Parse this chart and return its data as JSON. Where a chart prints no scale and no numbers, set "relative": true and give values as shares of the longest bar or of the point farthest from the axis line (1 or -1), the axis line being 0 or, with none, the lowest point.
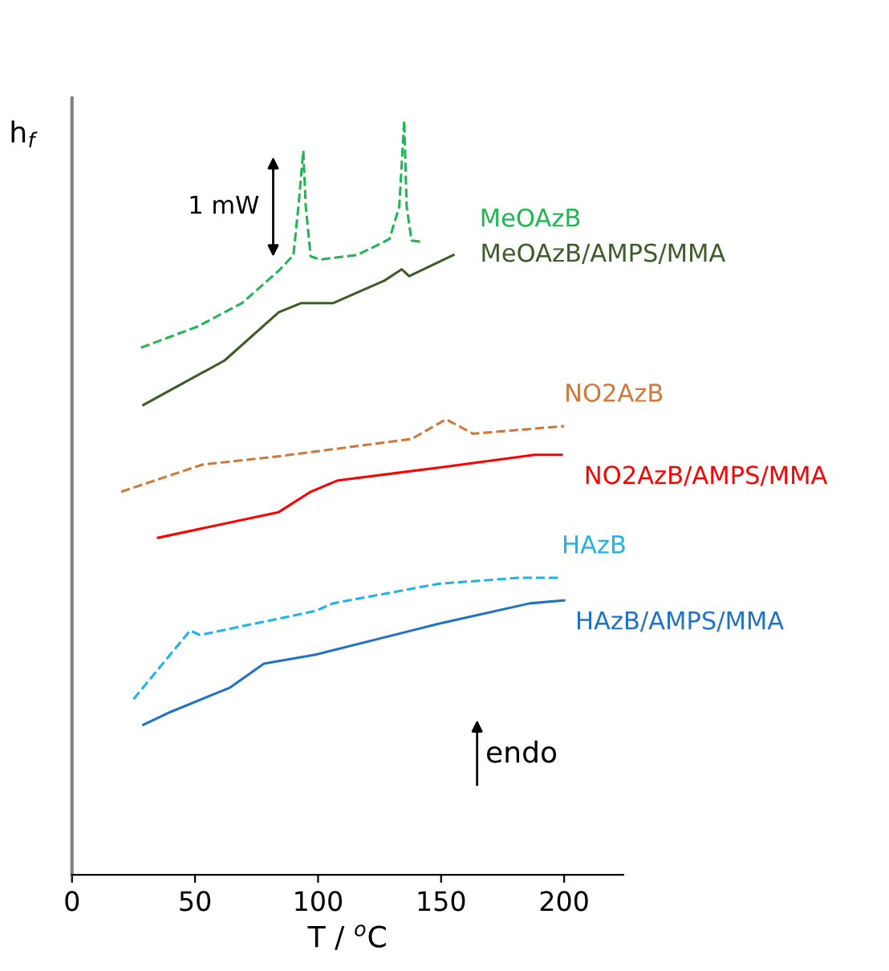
{
  "chart_data": {
    "type": "line",
    "relative": true,
    "xlabel": "T / $^{o}$C",
    "ylabel": "h$_{f}$",
    "xlim": [
      0,
      224
    ],
    "xticks": [
      0,
      50,
      100,
      150,
      200
    ],
    "grid": false,
    "legend": false,
    "marker": "none",
    "annotations": [
      "1 mW",
      "endo"
    ],
    "series": [
      {
        "name": "MeOAzB",
        "color": "#22b455",
        "line_style": "dashed",
        "x": [
          28,
          51,
          69,
          84,
          90,
          92,
          94,
          95,
          97,
          101,
          116,
          129,
          133,
          135,
          136,
          138,
          143
        ],
        "values": [
          0.699,
          0.727,
          0.758,
          0.801,
          0.822,
          0.886,
          0.96,
          0.886,
          0.82,
          0.816,
          0.822,
          0.843,
          0.886,
          1.0,
          0.886,
          0.841,
          0.839
        ]
      },
      {
        "name": "MeOAzB/AMPS/MMA",
        "color": "#3d5c2a",
        "line_style": "solid",
        "x": [
          29,
          62,
          84,
          93,
          106,
          127,
          134,
          137,
          155
        ],
        "values": [
          0.623,
          0.682,
          0.746,
          0.758,
          0.758,
          0.788,
          0.803,
          0.794,
          0.822
        ]
      },
      {
        "name": "NO2AzB",
        "color": "#d0783a",
        "line_style": "dashed",
        "x": [
          20,
          53,
          84,
          138,
          152,
          163,
          200
        ],
        "values": [
          0.508,
          0.544,
          0.555,
          0.578,
          0.604,
          0.585,
          0.595
        ]
      },
      {
        "name": "NO2AzB/AMPS/MMA",
        "color": "#ff0000",
        "line_style": "solid",
        "x": [
          35,
          84,
          97,
          108,
          149,
          188,
          199
        ],
        "values": [
          0.447,
          0.481,
          0.508,
          0.523,
          0.54,
          0.557,
          0.557
        ]
      },
      {
        "name": "HAzB",
        "color": "#1fb4e8",
        "line_style": "dashed",
        "x": [
          25,
          48,
          52,
          99,
          106,
          149,
          182,
          199
        ],
        "values": [
          0.233,
          0.324,
          0.318,
          0.35,
          0.36,
          0.386,
          0.394,
          0.394
        ]
      },
      {
        "name": "HAzB/AMPS/MMA",
        "color": "#1f72c4",
        "line_style": "solid",
        "x": [
          29,
          40,
          64,
          78,
          99,
          149,
          186,
          200
        ],
        "values": [
          0.199,
          0.216,
          0.248,
          0.28,
          0.292,
          0.333,
          0.36,
          0.364
        ]
      }
    ]
  }
}
